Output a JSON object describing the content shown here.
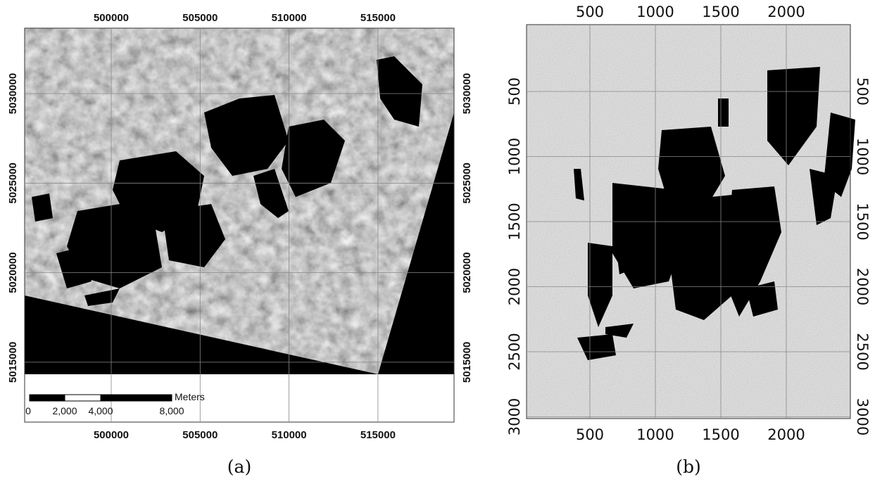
{
  "panels": [
    {
      "label": "(a)",
      "x_ticks": [
        "500000",
        "505000",
        "510000",
        "515000"
      ],
      "y_ticks": [
        "5030000",
        "5025000",
        "5020000",
        "5015000"
      ],
      "scale_bar": {
        "unit": "Meters",
        "labels": [
          "0",
          "2,000",
          "4,000",
          "8,000"
        ]
      }
    },
    {
      "label": "(b)",
      "x_ticks": [
        "500",
        "1000",
        "1500",
        "2000"
      ],
      "y_ticks": [
        "500",
        "1000",
        "1500",
        "2000",
        "2500",
        "3000"
      ]
    }
  ]
}
